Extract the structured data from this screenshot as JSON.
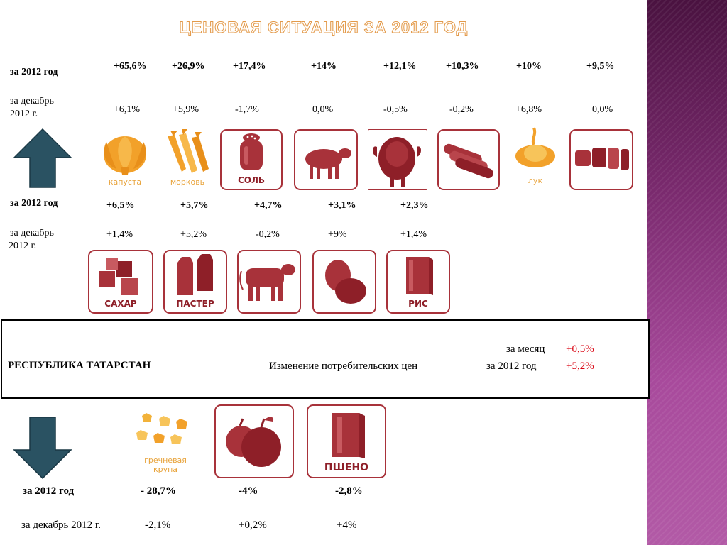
{
  "title": "ЦЕНОВАЯ СИТУАЦИЯ ЗА 2012 ГОД",
  "labels": {
    "year": "за 2012 год",
    "dec_line1": "за декабрь",
    "dec_line2": "2012 г.",
    "dec_full": "за декабрь 2012 г."
  },
  "row1": {
    "year_values": [
      "+65,6%",
      "+26,9%",
      "+17,4%",
      "+14%",
      "+12,1%",
      "+10,3%",
      "+10%",
      "+9,5%"
    ],
    "dec_values": [
      "+6,1%",
      "+5,9%",
      "-1,7%",
      "0,0%",
      "-0,5%",
      "-0,2%",
      "+6,8%",
      "0,0%"
    ],
    "icons": [
      {
        "name": "cabbage-icon",
        "caption": "капуста"
      },
      {
        "name": "carrot-icon",
        "caption": "морковь"
      },
      {
        "name": "salt-icon",
        "caption": "СОЛЬ"
      },
      {
        "name": "sheep-icon",
        "caption": ""
      },
      {
        "name": "chicken-icon",
        "caption": ""
      },
      {
        "name": "bread-icon",
        "caption": ""
      },
      {
        "name": "onion-icon",
        "caption": "лук"
      },
      {
        "name": "loaf-icon",
        "caption": ""
      }
    ]
  },
  "row2": {
    "year_values": [
      "+6,5%",
      "+5,7%",
      "+4,7%",
      "+3,1%",
      "+2,3%"
    ],
    "dec_values": [
      "+1,4%",
      "+5,2%",
      "-0,2%",
      "+9%",
      "+1,4%"
    ],
    "icons": [
      {
        "name": "sugar-icon",
        "caption": "САХАР"
      },
      {
        "name": "milk-icon",
        "caption": "ПАСТЕР"
      },
      {
        "name": "cow-icon",
        "caption": ""
      },
      {
        "name": "eggs-icon",
        "caption": ""
      },
      {
        "name": "rice-icon",
        "caption": "РИС"
      }
    ]
  },
  "summary": {
    "region": "РЕСПУБЛИКА ТАТАРСТАН",
    "description": "Изменение потребительских цен",
    "month_label": "за месяц",
    "month_value": "+0,5%",
    "year_label": "за 2012 год",
    "year_value": "+5,2%"
  },
  "row3": {
    "year_values": [
      "- 28,7%",
      "-4%",
      "-2,8%"
    ],
    "dec_values": [
      "-2,1%",
      "+0,2%",
      "+4%"
    ],
    "icons": [
      {
        "name": "buckwheat-icon",
        "caption_line1": "гречневая",
        "caption_line2": "крупа"
      },
      {
        "name": "apple-icon",
        "caption": ""
      },
      {
        "name": "millet-icon",
        "caption": "ПШЕНО"
      }
    ]
  },
  "colors": {
    "product_red": "#a8323a",
    "orange": "#f2a12a",
    "arrow": "#2a5262",
    "accent_red": "#d9000f"
  }
}
